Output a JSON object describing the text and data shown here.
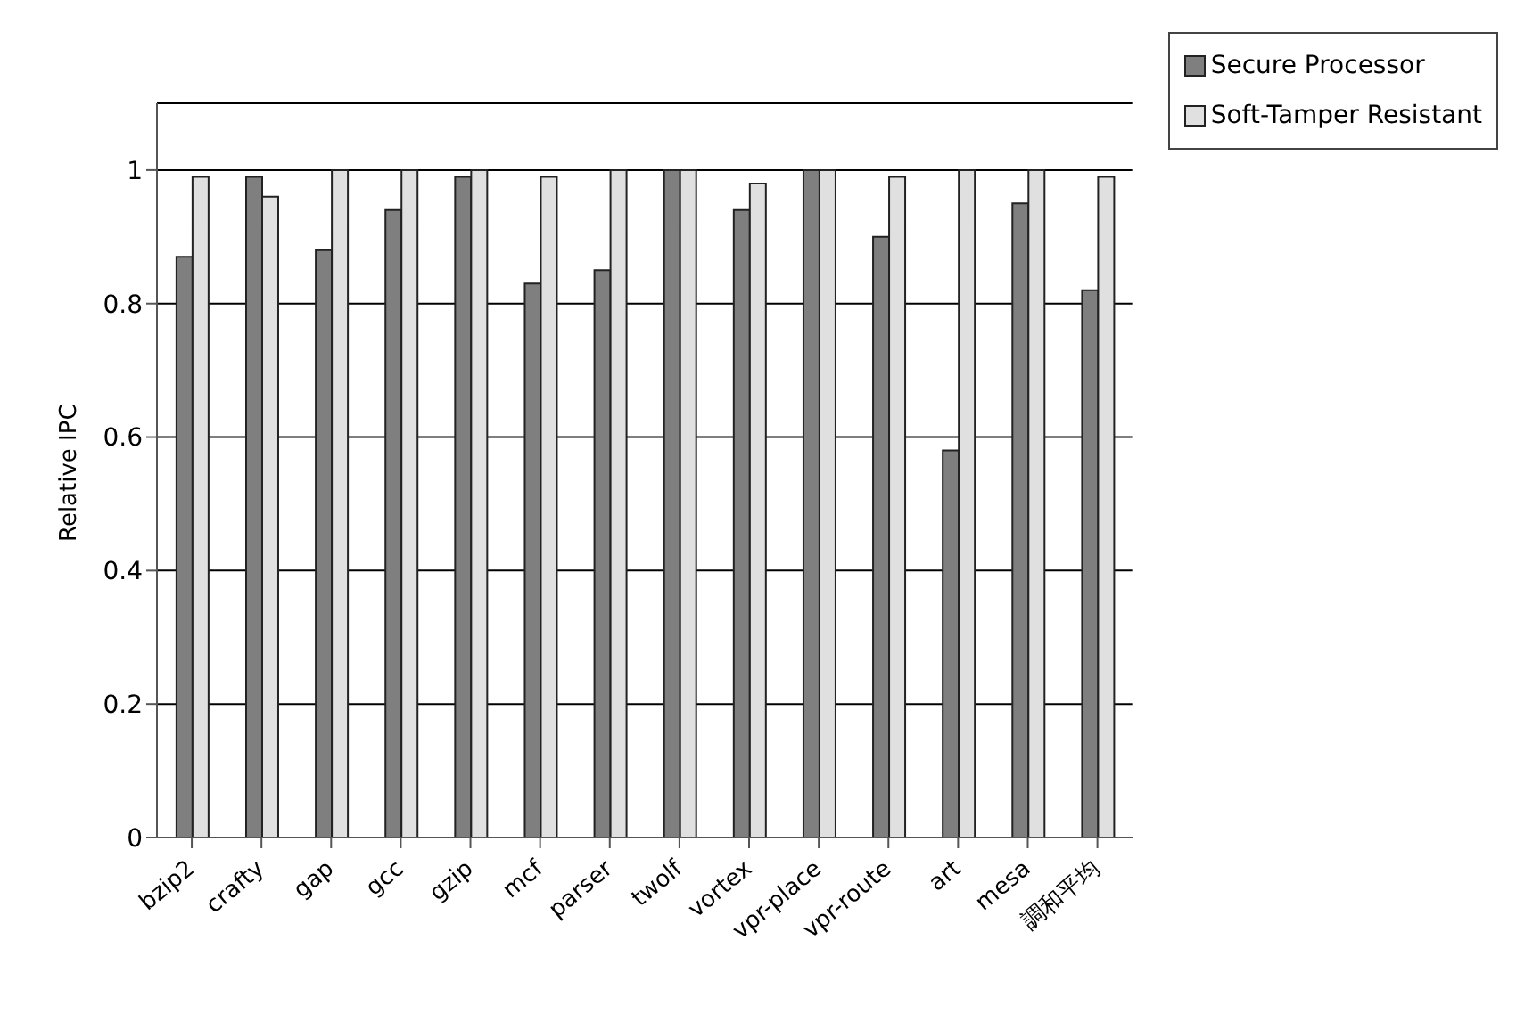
{
  "chart_data": {
    "type": "bar",
    "ylabel": "Relative IPC",
    "categories": [
      "bzip2",
      "crafty",
      "gap",
      "gcc",
      "gzip",
      "mcf",
      "parser",
      "twolf",
      "vortex",
      "vpr-place",
      "vpr-route",
      "art",
      "mesa",
      "調和平均"
    ],
    "series": [
      {
        "name": "Secure Processor",
        "color": "#7f7f7f",
        "values": [
          0.87,
          0.99,
          0.88,
          0.94,
          0.99,
          0.83,
          0.85,
          1.0,
          0.94,
          1.0,
          0.9,
          0.58,
          0.95,
          0.82
        ]
      },
      {
        "name": "Soft-Tamper Resistant",
        "color": "#e0e0e0",
        "values": [
          0.99,
          0.96,
          1.0,
          1.0,
          1.0,
          0.99,
          1.0,
          1.0,
          0.98,
          1.0,
          0.99,
          1.0,
          1.0,
          0.99
        ]
      }
    ],
    "ylim": [
      0,
      1.1
    ],
    "yticks": [
      0,
      0.2,
      0.4,
      0.6,
      0.8,
      1
    ],
    "grid": "y",
    "legend": "top right"
  }
}
